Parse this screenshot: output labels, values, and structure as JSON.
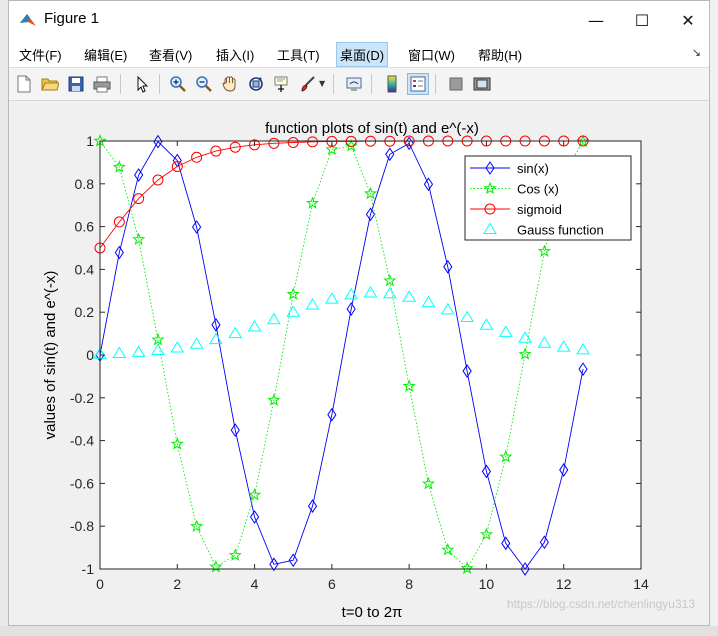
{
  "window": {
    "title": "Figure 1",
    "controls": {
      "minimize": "—",
      "maximize": "☐",
      "close": "✕"
    }
  },
  "menubar": {
    "items": [
      {
        "label": "文件(F)"
      },
      {
        "label": "编辑(E)"
      },
      {
        "label": "查看(V)"
      },
      {
        "label": "插入(I)"
      },
      {
        "label": "工具(T)"
      },
      {
        "label": "桌面(D)",
        "active": true
      },
      {
        "label": "窗口(W)"
      },
      {
        "label": "帮助(H)"
      }
    ],
    "overflow_icon": "dock-arrow-icon"
  },
  "toolbar": {
    "buttons": [
      "new-figure-icon",
      "open-file-icon",
      "save-icon",
      "print-icon",
      "edit-plot-arrow-icon",
      "zoom-in-icon",
      "zoom-out-icon",
      "pan-hand-icon",
      "rotate-3d-icon",
      "data-cursor-icon",
      "brush-icon",
      "link-plot-icon",
      "colorbar-icon",
      "legend-icon",
      "hide-plot-tools-icon",
      "show-plot-tools-icon"
    ]
  },
  "watermark": "https://blog.csdn.net/chenlingyu313",
  "chart_data": {
    "type": "line",
    "title": "function plots of sin(t) and e^(-x)",
    "xlabel": "t=0 to 2π",
    "ylabel": "values of sin(t) and e^(-x)",
    "xlim": [
      0,
      14
    ],
    "ylim": [
      -1,
      1
    ],
    "xticks": [
      0,
      2,
      4,
      6,
      8,
      10,
      12,
      14
    ],
    "yticks": [
      -1,
      -0.8,
      -0.6,
      -0.4,
      -0.2,
      0,
      0.2,
      0.4,
      0.6,
      0.8,
      1
    ],
    "grid": false,
    "legend_position": "top-right",
    "x": [
      0,
      0.5,
      1,
      1.5,
      2,
      2.5,
      3,
      3.5,
      4,
      4.5,
      5,
      5.5,
      6,
      6.5,
      7,
      7.5,
      8,
      8.5,
      9,
      9.5,
      10,
      10.5,
      11,
      11.5,
      12,
      12.5
    ],
    "series": [
      {
        "name": "sin(x)",
        "color": "#0000ff",
        "line": "solid",
        "marker": "diamond",
        "values": [
          0,
          0.479,
          0.841,
          0.997,
          0.909,
          0.598,
          0.141,
          -0.351,
          -0.757,
          -0.978,
          -0.959,
          -0.706,
          -0.279,
          0.215,
          0.657,
          0.938,
          0.989,
          0.798,
          0.412,
          -0.075,
          -0.544,
          -0.88,
          -1.0,
          -0.875,
          -0.537,
          -0.066
        ]
      },
      {
        "name": "Cos (x)",
        "color": "#00ee00",
        "line": "dotted",
        "marker": "pentagram",
        "values": [
          1,
          0.878,
          0.54,
          0.071,
          -0.416,
          -0.801,
          -0.99,
          -0.936,
          -0.654,
          -0.211,
          0.284,
          0.709,
          0.96,
          0.977,
          0.754,
          0.347,
          -0.146,
          -0.602,
          -0.911,
          -0.997,
          -0.839,
          -0.476,
          0.004,
          0.484,
          0.844,
          0.998
        ]
      },
      {
        "name": "sigmoid",
        "color": "#ff0000",
        "line": "solid",
        "marker": "circle",
        "values": [
          0.5,
          0.622,
          0.731,
          0.818,
          0.881,
          0.924,
          0.953,
          0.971,
          0.982,
          0.989,
          0.993,
          0.996,
          0.998,
          0.998,
          0.999,
          0.999,
          1.0,
          1.0,
          1.0,
          1.0,
          1.0,
          1.0,
          1.0,
          1.0,
          1.0,
          1.0
        ]
      },
      {
        "name": "Gauss function",
        "color": "#00ffff",
        "line": "none",
        "marker": "triangle",
        "values": [
          0.003,
          0.007,
          0.012,
          0.021,
          0.033,
          0.05,
          0.072,
          0.1,
          0.131,
          0.165,
          0.2,
          0.233,
          0.261,
          0.281,
          0.29,
          0.286,
          0.27,
          0.244,
          0.211,
          0.175,
          0.139,
          0.106,
          0.078,
          0.055,
          0.037,
          0.024
        ]
      }
    ]
  }
}
